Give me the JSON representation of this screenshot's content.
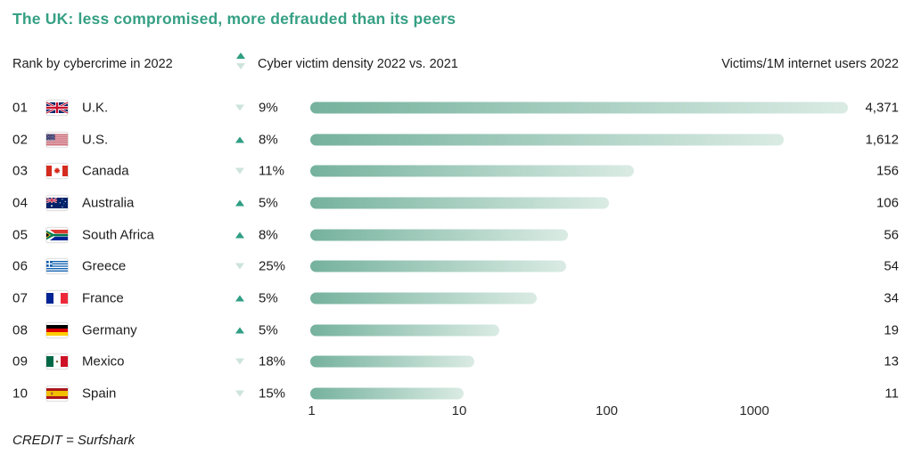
{
  "title": "The UK: less compromised, more defrauded than its peers",
  "header": {
    "rank_label": "Rank by cybercrime in 2022",
    "density_label": "Cyber victim density 2022 vs. 2021",
    "victims_label": "Victims/1M internet users 2022"
  },
  "credit": "CREDIT = Surfshark",
  "colors": {
    "title": "#36a084",
    "up_arrow": "#2f9e82",
    "down_arrow": "#cde4db",
    "bar_start": "#75b29d",
    "bar_end": "#daebe4"
  },
  "chart_data": {
    "type": "bar",
    "orientation": "horizontal",
    "x_scale": "log10",
    "x_ticks": [
      1,
      10,
      100,
      1000
    ],
    "x_range": [
      1,
      10000
    ],
    "grid": false,
    "title": "The UK: less compromised, more defrauded than its peers",
    "value_label": "Victims/1M internet users 2022",
    "rows": [
      {
        "rank": "01",
        "country": "U.K.",
        "flag": "uk",
        "trend": "down",
        "change_pct": "9%",
        "victims_per_1m": 4371,
        "victims_label": "4,371"
      },
      {
        "rank": "02",
        "country": "U.S.",
        "flag": "us",
        "trend": "up",
        "change_pct": "8%",
        "victims_per_1m": 1612,
        "victims_label": "1,612"
      },
      {
        "rank": "03",
        "country": "Canada",
        "flag": "ca",
        "trend": "down",
        "change_pct": "11%",
        "victims_per_1m": 156,
        "victims_label": "156"
      },
      {
        "rank": "04",
        "country": "Australia",
        "flag": "au",
        "trend": "up",
        "change_pct": "5%",
        "victims_per_1m": 106,
        "victims_label": "106"
      },
      {
        "rank": "05",
        "country": "South Africa",
        "flag": "za",
        "trend": "up",
        "change_pct": "8%",
        "victims_per_1m": 56,
        "victims_label": "56"
      },
      {
        "rank": "06",
        "country": "Greece",
        "flag": "gr",
        "trend": "down",
        "change_pct": "25%",
        "victims_per_1m": 54,
        "victims_label": "54"
      },
      {
        "rank": "07",
        "country": "France",
        "flag": "fr",
        "trend": "up",
        "change_pct": "5%",
        "victims_per_1m": 34,
        "victims_label": "34"
      },
      {
        "rank": "08",
        "country": "Germany",
        "flag": "de",
        "trend": "up",
        "change_pct": "5%",
        "victims_per_1m": 19,
        "victims_label": "19"
      },
      {
        "rank": "09",
        "country": "Mexico",
        "flag": "mx",
        "trend": "down",
        "change_pct": "18%",
        "victims_per_1m": 13,
        "victims_label": "13"
      },
      {
        "rank": "10",
        "country": "Spain",
        "flag": "es",
        "trend": "down",
        "change_pct": "15%",
        "victims_per_1m": 11,
        "victims_label": "11"
      }
    ]
  }
}
